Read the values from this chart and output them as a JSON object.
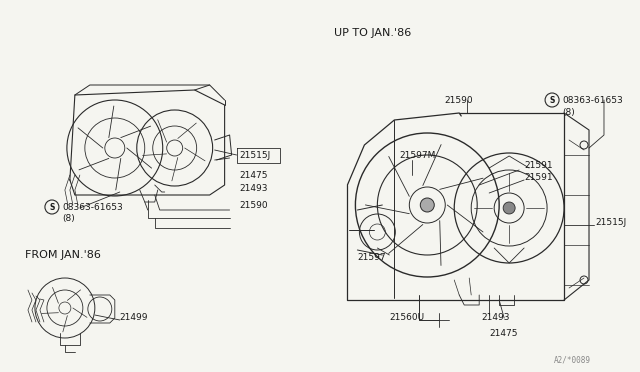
{
  "background_color": "#f5f5f0",
  "border_color": "#aaaaaa",
  "diagram_code": "A2/*0089",
  "labels": {
    "up_to_jan86": "UP TO JAN.'86",
    "from_jan86": "FROM JAN.'86"
  },
  "line_color": "#2a2a2a",
  "text_color": "#1a1a1a",
  "label_fontsize": 7.0,
  "annotation_fontsize": 6.5,
  "header_fontsize": 8.0
}
